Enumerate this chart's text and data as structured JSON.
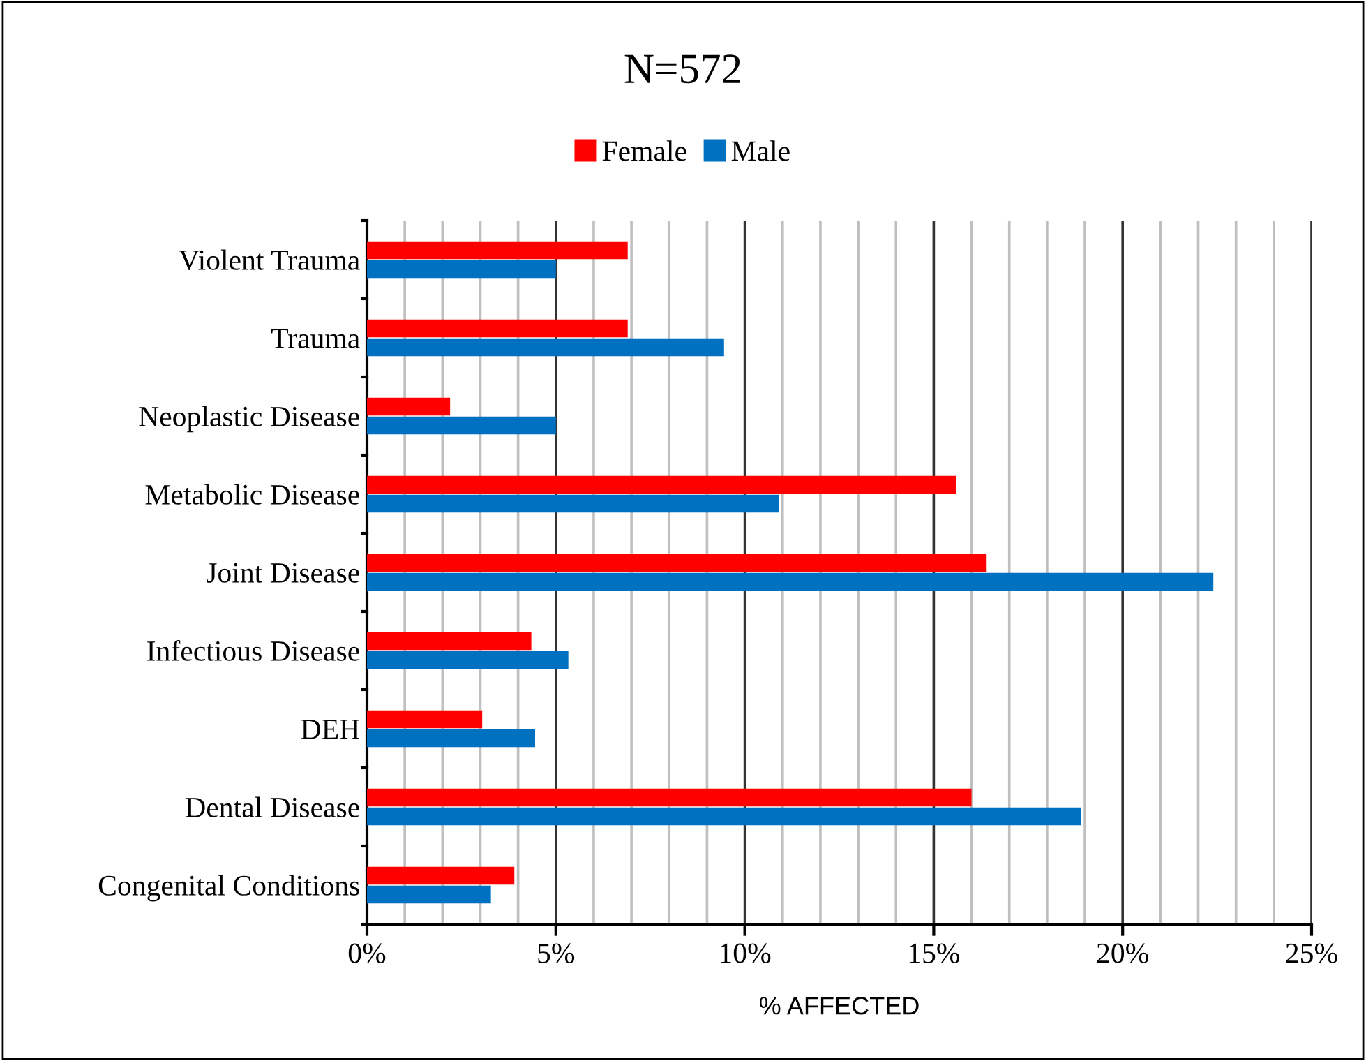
{
  "chart_data": {
    "type": "bar",
    "orientation": "horizontal",
    "title": "N=572",
    "xlabel": "% AFFECTED",
    "categories": [
      "Violent Trauma",
      "Trauma",
      "Neoplastic Disease",
      "Metabolic Disease",
      "Joint Disease",
      "Infectious Disease",
      "DEH",
      "Dental Disease",
      "Congenital Conditions"
    ],
    "series": [
      {
        "name": "Female",
        "color": "#ff0000",
        "values": [
          6.9,
          6.9,
          2.2,
          15.6,
          16.4,
          4.35,
          3.05,
          16.0,
          3.9
        ]
      },
      {
        "name": "Male",
        "color": "#0070c0",
        "values": [
          5.0,
          9.45,
          5.0,
          10.9,
          22.4,
          5.33,
          4.45,
          18.9,
          3.28
        ]
      }
    ],
    "xlim": [
      0,
      25
    ],
    "xticks": [
      {
        "value": 0,
        "label": "0%"
      },
      {
        "value": 1,
        "label": null
      },
      {
        "value": 2,
        "label": null
      },
      {
        "value": 3,
        "label": null
      },
      {
        "value": 4,
        "label": null
      },
      {
        "value": 5,
        "label": "5%"
      },
      {
        "value": 6,
        "label": null
      },
      {
        "value": 7,
        "label": null
      },
      {
        "value": 8,
        "label": null
      },
      {
        "value": 9,
        "label": null
      },
      {
        "value": 10,
        "label": "10%"
      },
      {
        "value": 11,
        "label": null
      },
      {
        "value": 12,
        "label": null
      },
      {
        "value": 13,
        "label": null
      },
      {
        "value": 14,
        "label": null
      },
      {
        "value": 15,
        "label": "15%"
      },
      {
        "value": 16,
        "label": null
      },
      {
        "value": 17,
        "label": null
      },
      {
        "value": 18,
        "label": null
      },
      {
        "value": 19,
        "label": null
      },
      {
        "value": 20,
        "label": "20%"
      },
      {
        "value": 21,
        "label": null
      },
      {
        "value": 22,
        "label": null
      },
      {
        "value": 23,
        "label": null
      },
      {
        "value": 24,
        "label": null
      },
      {
        "value": 25,
        "label": "25%"
      }
    ],
    "grid": "x",
    "legend": "top"
  }
}
